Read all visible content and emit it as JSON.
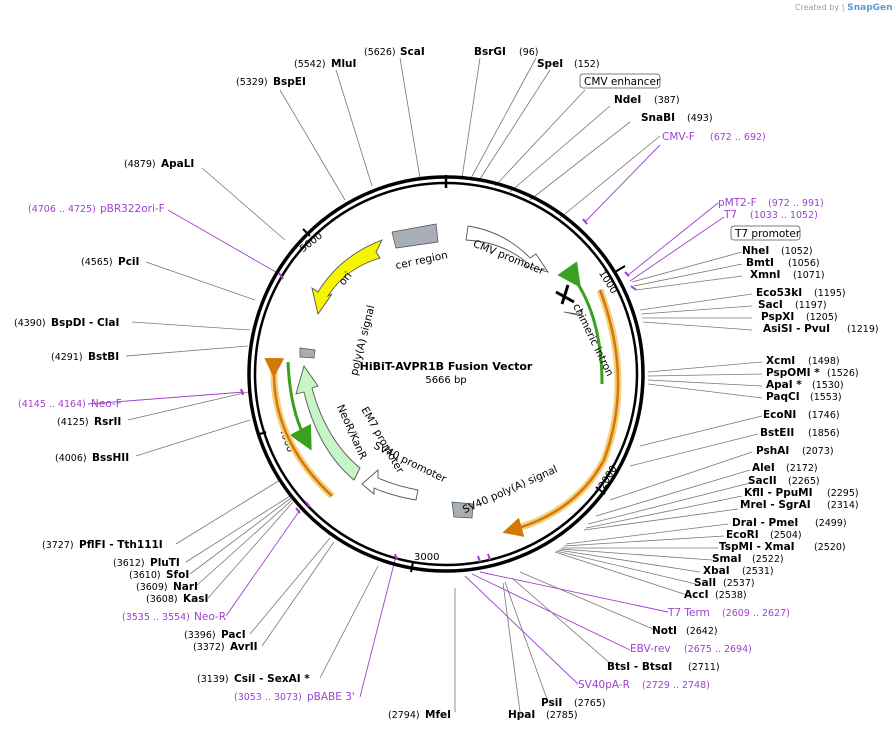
{
  "watermark": {
    "prefix": "Created by",
    "brand": "SnapGene"
  },
  "plasmid": {
    "name": "HiBiT-AVPR1B Fusion Vector",
    "length": "5666 bp"
  },
  "ticks": [
    "1000",
    "2000",
    "3000",
    "4000",
    "5000"
  ],
  "enzymes_right": [
    {
      "name": "BsrGI",
      "pos": "(96)"
    },
    {
      "name": "SpeI",
      "pos": "(152)"
    },
    {
      "name": "NdeI",
      "pos": "(387)"
    },
    {
      "name": "SnaBI",
      "pos": "(493)"
    },
    {
      "name": "NheI",
      "pos": "(1052)"
    },
    {
      "name": "BmtI",
      "pos": "(1056)"
    },
    {
      "name": "XmnI",
      "pos": "(1071)"
    },
    {
      "name": "Eco53kI",
      "pos": "(1195)"
    },
    {
      "name": "SacI",
      "pos": "(1197)"
    },
    {
      "name": "PspXI",
      "pos": "(1205)"
    },
    {
      "name": "AsiSI - PvuI",
      "pos": "(1219)"
    },
    {
      "name": "XcmI",
      "pos": "(1498)"
    },
    {
      "name": "PspOMI *",
      "pos": "(1526)"
    },
    {
      "name": "ApaI *",
      "pos": "(1530)"
    },
    {
      "name": "PaqCI",
      "pos": "(1553)"
    },
    {
      "name": "EcoNI",
      "pos": "(1746)"
    },
    {
      "name": "BstEII",
      "pos": "(1856)"
    },
    {
      "name": "PshAI",
      "pos": "(2073)"
    },
    {
      "name": "AleI",
      "pos": "(2172)"
    },
    {
      "name": "SacII",
      "pos": "(2265)"
    },
    {
      "name": "KflI - PpuMI",
      "pos": "(2295)"
    },
    {
      "name": "MreI - SgrAI",
      "pos": "(2314)"
    },
    {
      "name": "DraI - PmeI",
      "pos": "(2499)"
    },
    {
      "name": "EcoRI",
      "pos": "(2504)"
    },
    {
      "name": "TspMI - XmaI",
      "pos": "(2520)"
    },
    {
      "name": "SmaI",
      "pos": "(2522)"
    },
    {
      "name": "XbaI",
      "pos": "(2531)"
    },
    {
      "name": "SalI",
      "pos": "(2537)"
    },
    {
      "name": "AccI",
      "pos": "(2538)"
    },
    {
      "name": "NotI",
      "pos": "(2642)"
    },
    {
      "name": "BtsI - BtsαI",
      "pos": "(2711)"
    },
    {
      "name": "PsiI",
      "pos": "(2765)"
    },
    {
      "name": "HpaI",
      "pos": "(2785)"
    },
    {
      "name": "MfeI",
      "pos": "(2794)"
    }
  ],
  "enzymes_left": [
    {
      "name": "ScaI",
      "pos": "(5626)"
    },
    {
      "name": "MluI",
      "pos": "(5542)"
    },
    {
      "name": "BspEI",
      "pos": "(5329)"
    },
    {
      "name": "ApaLI",
      "pos": "(4879)"
    },
    {
      "name": "PciI",
      "pos": "(4565)"
    },
    {
      "name": "BspDI - ClaI",
      "pos": "(4390)"
    },
    {
      "name": "BstBI",
      "pos": "(4291)"
    },
    {
      "name": "RsrII",
      "pos": "(4125)"
    },
    {
      "name": "BssHII",
      "pos": "(4006)"
    },
    {
      "name": "PflFI - Tth111I",
      "pos": "(3727)"
    },
    {
      "name": "PluTI",
      "pos": "(3612)"
    },
    {
      "name": "SfoI",
      "pos": "(3610)"
    },
    {
      "name": "NarI",
      "pos": "(3609)"
    },
    {
      "name": "KasI",
      "pos": "(3608)"
    },
    {
      "name": "PacI",
      "pos": "(3396)"
    },
    {
      "name": "AvrII",
      "pos": "(3372)"
    },
    {
      "name": "CsiI - SexAI *",
      "pos": "(3139)"
    }
  ],
  "primers": [
    {
      "name": "CMV-F",
      "pos": "(672 .. 692)"
    },
    {
      "name": "pMT2-F",
      "pos": "(972 .. 991)"
    },
    {
      "name": "T7",
      "pos": "(1033 .. 1052)"
    },
    {
      "name": "T7 Term",
      "pos": "(2609 .. 2627)"
    },
    {
      "name": "EBV-rev",
      "pos": "(2675 .. 2694)"
    },
    {
      "name": "SV40pA-R",
      "pos": "(2729 .. 2748)"
    },
    {
      "name": "pBABE 3'",
      "pos": "(3053 .. 3073)"
    },
    {
      "name": "Neo-R",
      "pos": "(3535 .. 3554)"
    },
    {
      "name": "Neo-F",
      "pos": "(4145 .. 4164)"
    },
    {
      "name": "pBR322ori-F",
      "pos": "(4706 .. 4725)"
    }
  ],
  "boxed_features": [
    "CMV enhancer",
    "T7 promoter"
  ],
  "features": [
    "cer region",
    "CMV promoter",
    "chimeric intron",
    "SV40 poly(A) signal",
    "SV40 promoter",
    "EM7 promoter",
    "NeoR/KanR",
    "poly(A) signal",
    "ori"
  ],
  "colors": {
    "ori": "#f5f500",
    "neo": "#c6f5c6",
    "green_arrow": "#3aa020",
    "orange_arrow": "#d4780a",
    "orange_glow": "#f5d07a",
    "gray_box": "#a8aeb6",
    "primer": "#a040d0"
  }
}
